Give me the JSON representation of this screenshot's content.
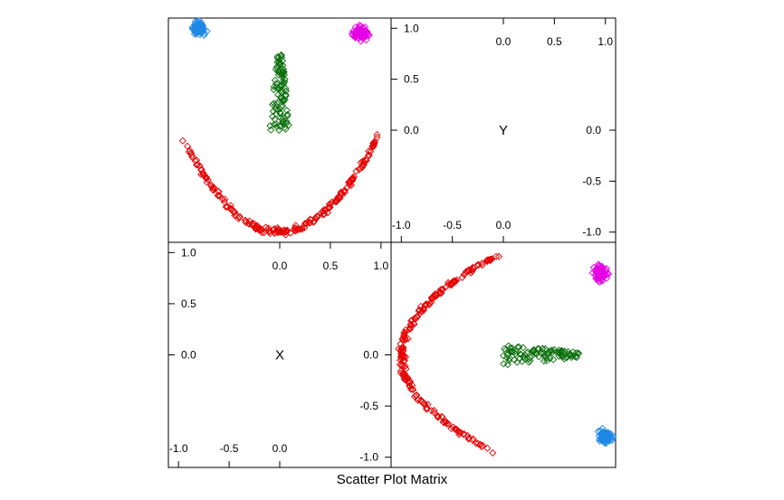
{
  "chart_data": {
    "type": "scatter",
    "title": "Scatter Plot Matrix",
    "variables": [
      "X",
      "Y"
    ],
    "x_ticks": [
      "-1.0",
      "-0.5",
      "0.0",
      "0.5",
      "1.0"
    ],
    "y_ticks": [
      "-1.0",
      "-0.5",
      "0.0",
      "0.5",
      "1.0"
    ],
    "panel_ranges": {
      "x": [
        -1.1,
        1.1
      ],
      "y": [
        -1.1,
        1.1
      ]
    },
    "marker": "open-diamond",
    "grid": false,
    "series": [
      {
        "color": "#1e88e5",
        "shape": "cluster",
        "center": [
          -0.8,
          1.0
        ],
        "spread": [
          0.05,
          0.05
        ],
        "count": 80
      },
      {
        "color": "#e600e6",
        "shape": "cluster",
        "center": [
          0.8,
          0.95
        ],
        "spread": [
          0.07,
          0.05
        ],
        "count": 90
      },
      {
        "color": "#0a6e0a",
        "shape": "triangle",
        "y_range": [
          0.0,
          0.75
        ],
        "x_halfwidth_at_base": 0.1,
        "count": 100
      },
      {
        "color": "#e60000",
        "shape": "parabola",
        "x_range": [
          -0.98,
          0.98
        ],
        "formula": "y = x^2 - 1",
        "count": 220
      }
    ]
  }
}
